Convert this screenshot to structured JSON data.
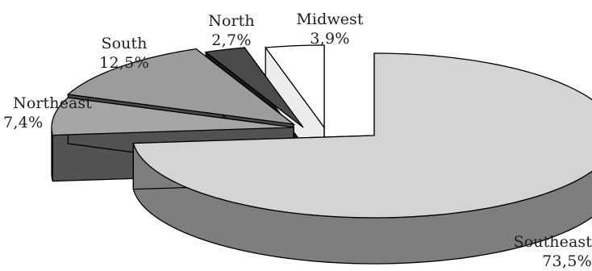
{
  "chart_data": {
    "type": "pie",
    "style": "3d-exploded",
    "title": "",
    "slices": [
      {
        "label": "Southeast",
        "value": 73.5,
        "value_label": "73,5%",
        "color": "#d4d4d4",
        "side_color": "#7e7e7e"
      },
      {
        "label": "Northeast",
        "value": 7.4,
        "value_label": "7,4%",
        "color": "#a6a6a6",
        "side_color": "#525252"
      },
      {
        "label": "South",
        "value": 12.5,
        "value_label": "12,5%",
        "color": "#9c9c9c",
        "side_color": "#4a4a4a"
      },
      {
        "label": "North",
        "value": 2.7,
        "value_label": "2,7%",
        "color": "#4a4a4a",
        "side_color": "#1c1c1c"
      },
      {
        "label": "Midwest",
        "value": 3.9,
        "value_label": "3,9%",
        "color": "#ffffff",
        "side_color": "#ededed"
      }
    ],
    "legend": "none"
  }
}
